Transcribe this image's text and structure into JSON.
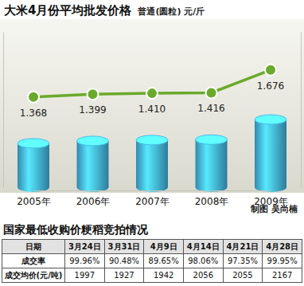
{
  "chart_data": {
    "type": "line",
    "title": "大米4月份平均批发价格",
    "subtitle": "普通(圆粒) 元/斤",
    "categories": [
      "2005年",
      "2006年",
      "2007年",
      "2008年",
      "2009年"
    ],
    "series": [
      {
        "type": "line",
        "color": "#6aaa2a",
        "marker": "circle",
        "values": [
          1.368,
          1.399,
          1.41,
          1.416,
          1.676
        ],
        "value_labels": [
          "1.368",
          "1.399",
          "1.410",
          "1.416",
          "1.676"
        ]
      },
      {
        "type": "bar",
        "axis": "y2",
        "color": "#3fa9d6",
        "values": [
          1.368,
          1.399,
          1.41,
          1.416,
          1.676
        ]
      }
    ],
    "ylim": [
      0.34,
      2.11
    ],
    "y2lim": [
      0.8,
      2.81
    ],
    "data_labels": true,
    "tick_labels": "x",
    "grid": false
  },
  "credit": "制图 吴尚楠",
  "table": {
    "title": "国家最低收购价粳稻竞拍情况",
    "header": [
      "日期",
      "3月24日",
      "3月31日",
      "4月9日",
      "4月14日",
      "4月21日",
      "4月28日"
    ],
    "rows": [
      [
        "成交率",
        "99.96%",
        "90.48%",
        "89.65%",
        "98.06%",
        "97.35%",
        "99.95%"
      ],
      [
        "成交均价(元/吨)",
        "1997",
        "1927",
        "1942",
        "2056",
        "2055",
        "2167"
      ]
    ]
  }
}
